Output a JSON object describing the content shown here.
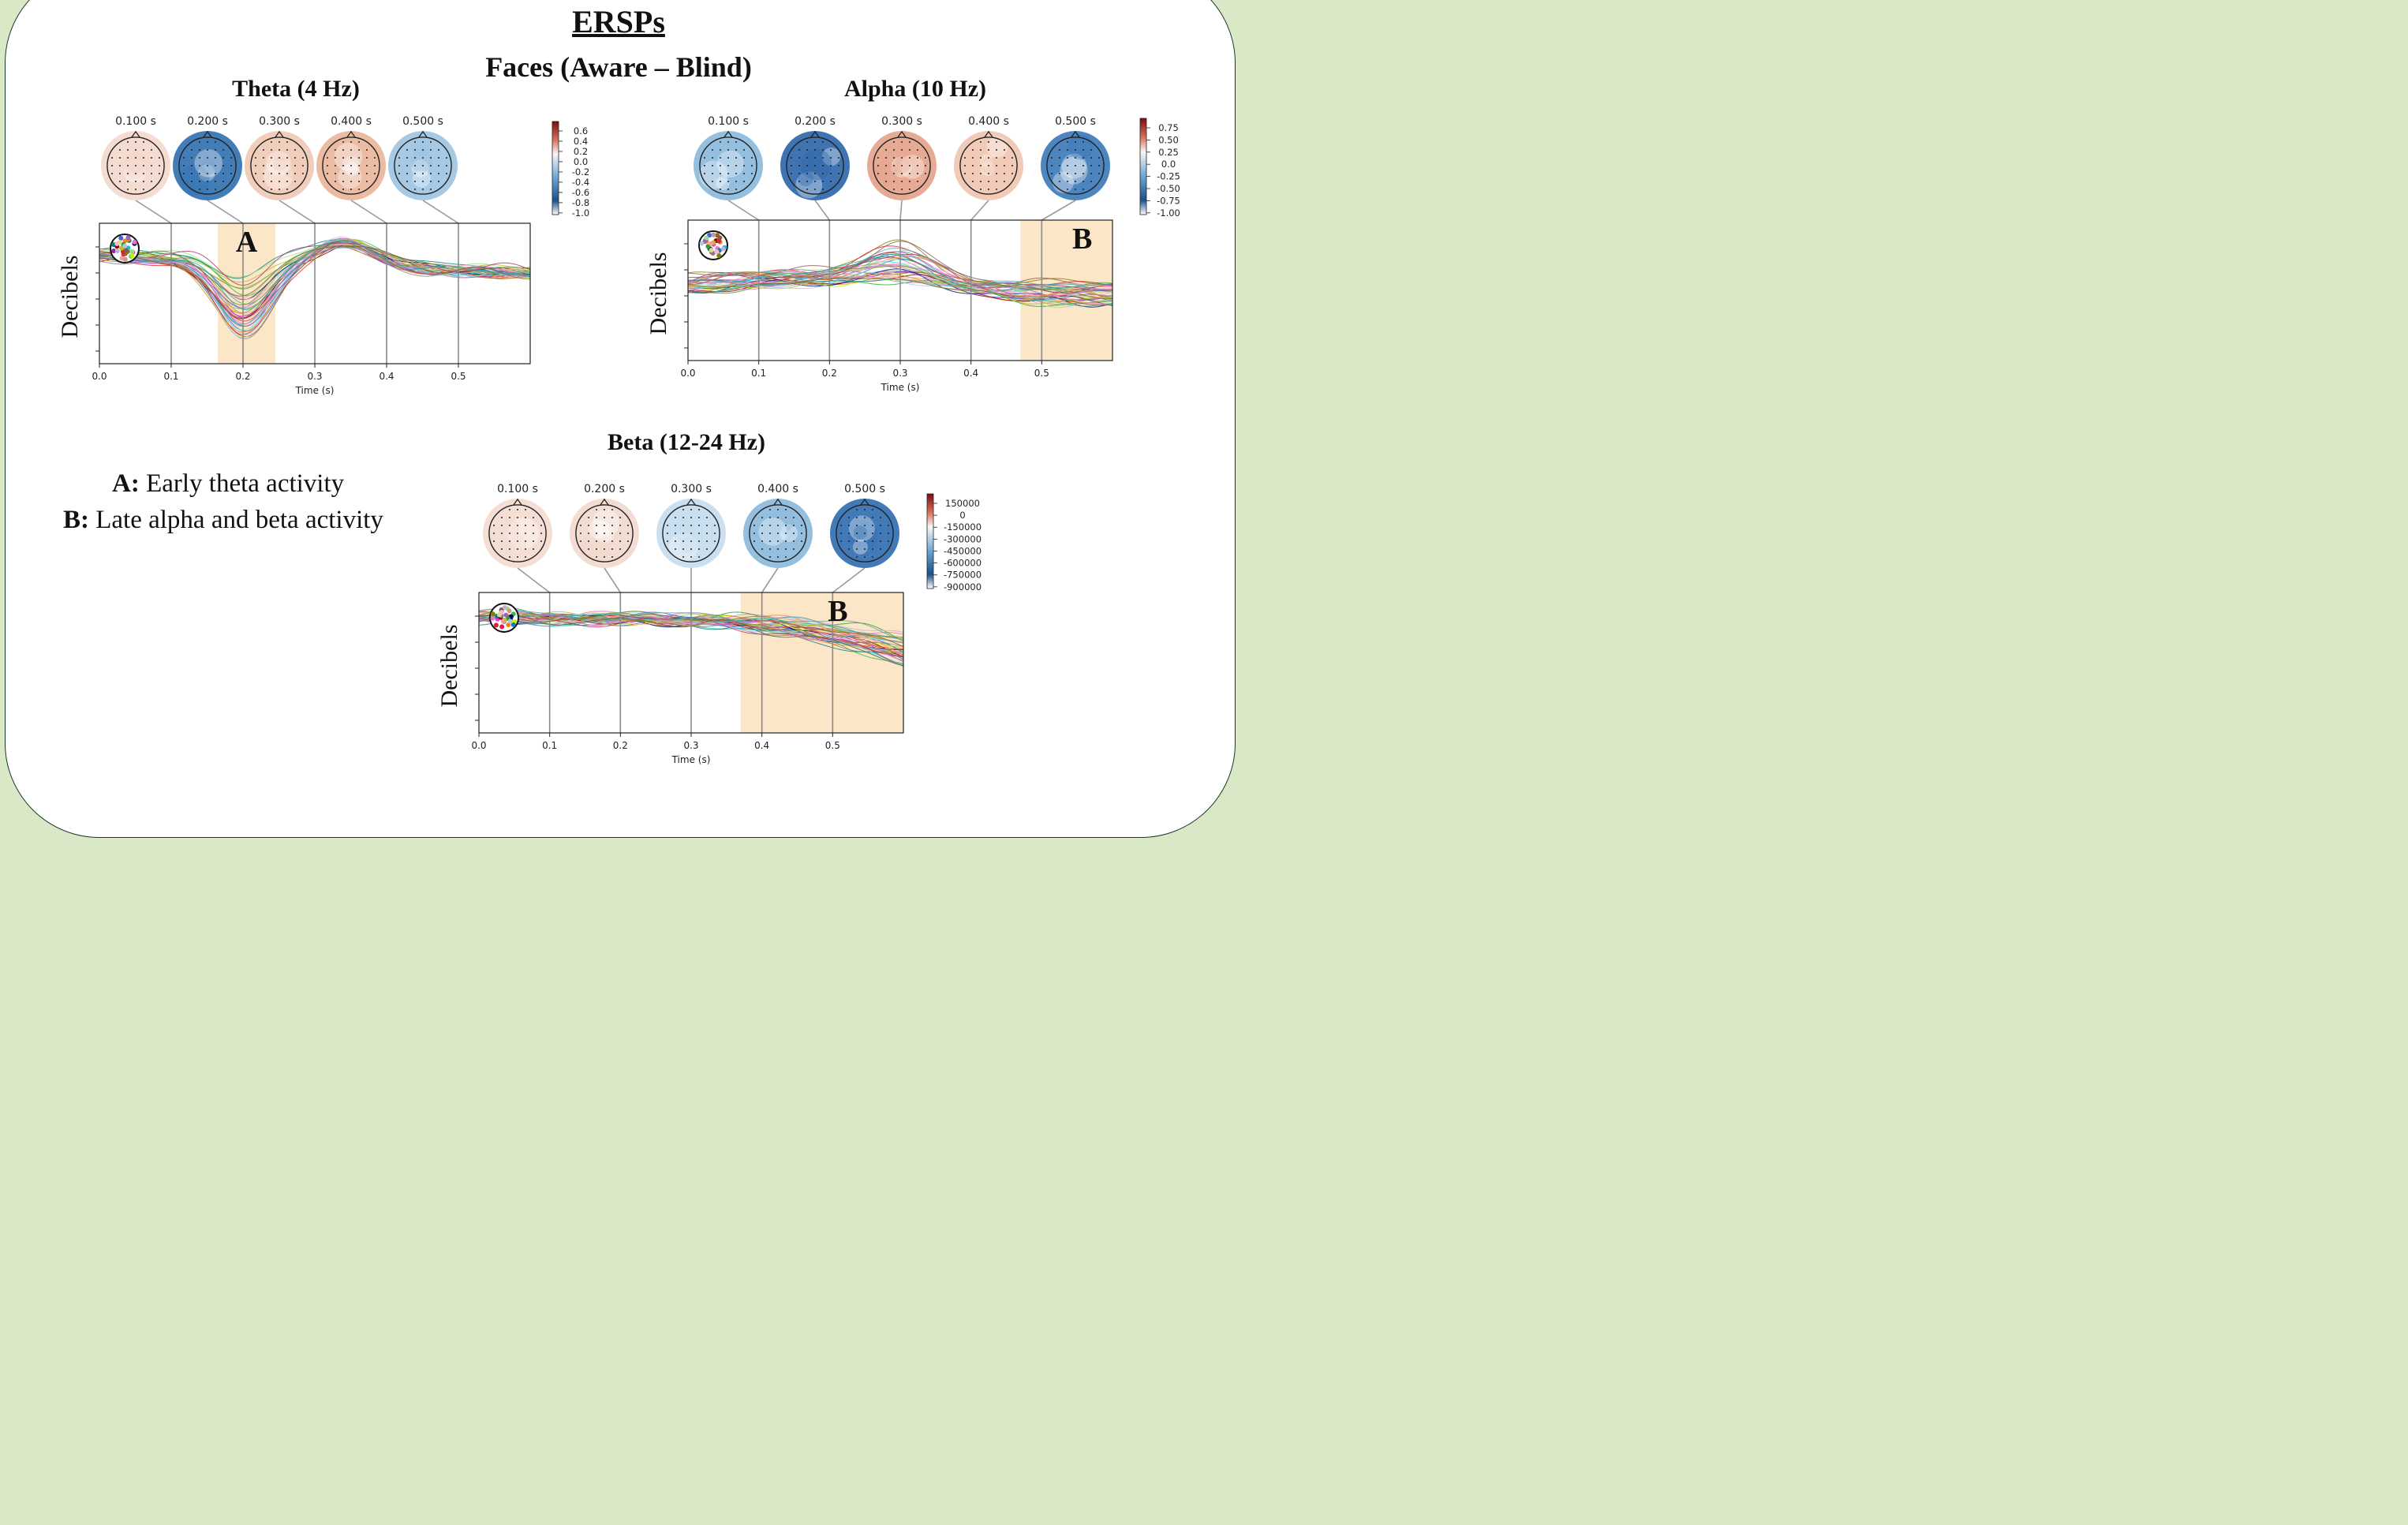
{
  "title": "ERSPs",
  "subtitle": "Faces (Aware – Blind)",
  "legend": [
    {
      "key": "A:",
      "text": " Early theta activity"
    },
    {
      "key": "B:",
      "text": " Late alpha and beta activity"
    }
  ],
  "colors": {
    "highlight": "#fbe6c8",
    "border": "#1a3a2a",
    "background": "#d9e9c8"
  },
  "chart_data": [
    {
      "type": "line",
      "panel_title": "Theta (4 Hz)",
      "xlabel": "Time (s)",
      "ylabel": "Decibels",
      "x_ticks": [
        "0.0",
        "0.1",
        "0.2",
        "0.3",
        "0.4",
        "0.5"
      ],
      "xlim": [
        0.0,
        0.6
      ],
      "highlight": {
        "label": "A",
        "x0": 0.165,
        "x1": 0.245
      },
      "topomap_times": [
        "0.100 s",
        "0.200 s",
        "0.300 s",
        "0.400 s",
        "0.500 s"
      ],
      "topomap_colors": [
        "#f4d8cc",
        "#2e6fb0",
        "#f0c8b4",
        "#eab49a",
        "#9cc4e2"
      ],
      "colorbar_ticks": [
        "0.6",
        "0.4",
        "0.2",
        "0.0",
        "-0.2",
        "-0.4",
        "-0.6",
        "-0.8",
        "-1.0"
      ],
      "n_channels": 40
    },
    {
      "type": "line",
      "panel_title": "Alpha (10 Hz)",
      "xlabel": "Time (s)",
      "ylabel": "Decibels",
      "x_ticks": [
        "0.0",
        "0.1",
        "0.2",
        "0.3",
        "0.4",
        "0.5"
      ],
      "xlim": [
        0.0,
        0.6
      ],
      "highlight": {
        "label": "B",
        "x0": 0.47,
        "x1": 0.6
      },
      "topomap_times": [
        "0.100 s",
        "0.200 s",
        "0.300 s",
        "0.400 s",
        "0.500 s"
      ],
      "topomap_colors": [
        "#8ab8dc",
        "#2a64a8",
        "#e4a28a",
        "#f0c4b0",
        "#3a78b8"
      ],
      "colorbar_ticks": [
        "0.75",
        "0.50",
        "0.25",
        "0.0",
        "-0.25",
        "-0.50",
        "-0.75",
        "-1.00"
      ],
      "n_channels": 40
    },
    {
      "type": "line",
      "panel_title": "Beta (12-24 Hz)",
      "xlabel": "Time (s)",
      "ylabel": "Decibels",
      "x_ticks": [
        "0.0",
        "0.1",
        "0.2",
        "0.3",
        "0.4",
        "0.5"
      ],
      "xlim": [
        0.0,
        0.6
      ],
      "highlight": {
        "label": "B",
        "x0": 0.37,
        "x1": 0.6
      },
      "topomap_times": [
        "0.100 s",
        "0.200 s",
        "0.300 s",
        "0.400 s",
        "0.500 s"
      ],
      "topomap_colors": [
        "#f4dcd0",
        "#f2d8cc",
        "#c4dcee",
        "#8ab8dc",
        "#2e6cb0"
      ],
      "colorbar_ticks": [
        "150000",
        "0",
        "-150000",
        "-300000",
        "-450000",
        "-600000",
        "-750000",
        "-900000"
      ],
      "n_channels": 40
    }
  ]
}
